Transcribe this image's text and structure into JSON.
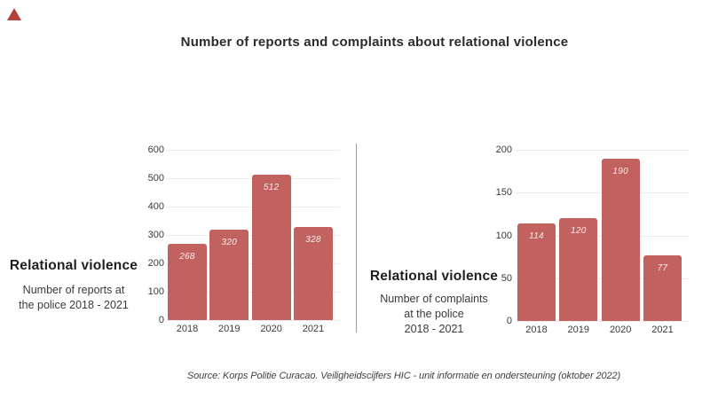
{
  "page": {
    "title": "Number of reports and complaints about relational violence",
    "source": "Source: Korps Politie Curacao. Veiligheidscijfers HIC - unit informatie en ondersteuning (oktober 2022)"
  },
  "colors": {
    "bar": "#c26260",
    "grid": "#ececec",
    "divider": "#9b9b9b",
    "triangle": "#b5423e"
  },
  "left_panel": {
    "heading": "Relational violence",
    "subheading_lines": [
      "Number of reports at",
      "the police 2018 - 2021"
    ]
  },
  "right_panel": {
    "heading": "Relational violence",
    "subheading_lines": [
      "Number of complaints",
      "at the police",
      "2018 - 2021"
    ]
  },
  "chart_data": [
    {
      "type": "bar",
      "title": "Number of reports at the police 2018 - 2021",
      "categories": [
        "2018",
        "2019",
        "2020",
        "2021"
      ],
      "values": [
        268,
        320,
        512,
        328
      ],
      "xlabel": "",
      "ylabel": "",
      "ylim": [
        0,
        600
      ],
      "yticks": [
        0,
        100,
        200,
        300,
        400,
        500,
        600
      ],
      "grid": true,
      "legend": false,
      "bar_color": "#c26260"
    },
    {
      "type": "bar",
      "title": "Number of complaints at the police 2018 - 2021",
      "categories": [
        "2018",
        "2019",
        "2020",
        "2021"
      ],
      "values": [
        114,
        120,
        190,
        77
      ],
      "xlabel": "",
      "ylabel": "",
      "ylim": [
        0,
        200
      ],
      "yticks": [
        0,
        50,
        100,
        150,
        200
      ],
      "grid": true,
      "legend": false,
      "bar_color": "#c26260"
    }
  ]
}
